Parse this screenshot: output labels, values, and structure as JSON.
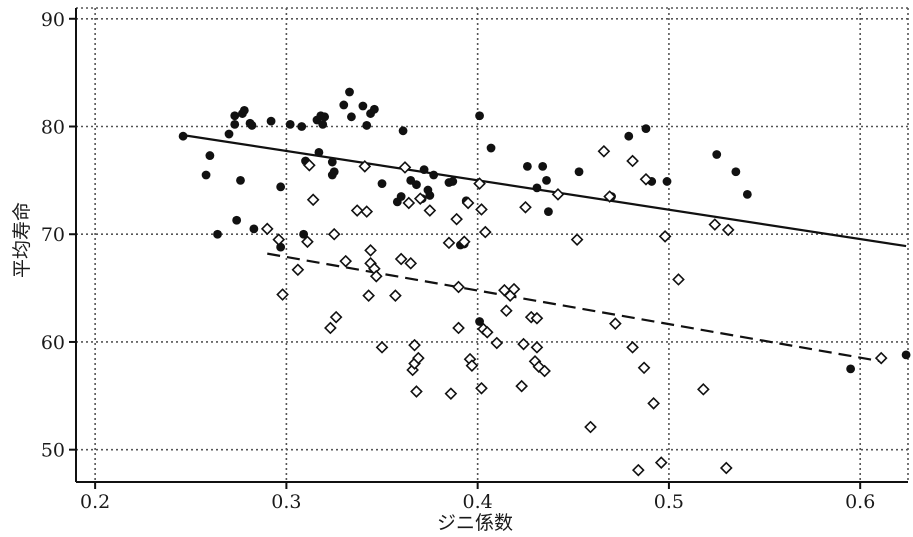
{
  "chart_data": {
    "type": "scatter",
    "xlabel": "ジニ係数",
    "ylabel": "平均寿命",
    "xlim": [
      0.19,
      0.625
    ],
    "ylim": [
      47,
      91
    ],
    "xticks": [
      "0.2",
      "0.3",
      "0.4",
      "0.5",
      "0.6"
    ],
    "xtick_values": [
      0.2,
      0.3,
      0.4,
      0.5,
      0.6
    ],
    "yticks": [
      "50",
      "60",
      "70",
      "80",
      "90"
    ],
    "ytick_values": [
      50,
      60,
      70,
      80,
      90
    ],
    "grid": true,
    "colors": {
      "filled": "#111111",
      "open": "#111111",
      "line": "#111111"
    },
    "series": [
      {
        "marker": "filled-circle",
        "points": [
          [
            0.246,
            79.1
          ],
          [
            0.258,
            75.5
          ],
          [
            0.26,
            77.3
          ],
          [
            0.264,
            70.0
          ],
          [
            0.27,
            79.3
          ],
          [
            0.273,
            80.2
          ],
          [
            0.273,
            81.0
          ],
          [
            0.274,
            71.3
          ],
          [
            0.276,
            75.0
          ],
          [
            0.277,
            81.2
          ],
          [
            0.278,
            81.5
          ],
          [
            0.281,
            80.3
          ],
          [
            0.282,
            80.1
          ],
          [
            0.283,
            70.5
          ],
          [
            0.292,
            80.5
          ],
          [
            0.297,
            74.4
          ],
          [
            0.297,
            68.8
          ],
          [
            0.302,
            80.2
          ],
          [
            0.308,
            80.0
          ],
          [
            0.309,
            70.0
          ],
          [
            0.31,
            76.8
          ],
          [
            0.316,
            80.6
          ],
          [
            0.317,
            77.6
          ],
          [
            0.318,
            81.0
          ],
          [
            0.319,
            80.2
          ],
          [
            0.32,
            80.9
          ],
          [
            0.324,
            76.7
          ],
          [
            0.324,
            75.5
          ],
          [
            0.325,
            75.8
          ],
          [
            0.33,
            82.0
          ],
          [
            0.333,
            83.2
          ],
          [
            0.334,
            80.9
          ],
          [
            0.34,
            81.9
          ],
          [
            0.342,
            80.1
          ],
          [
            0.344,
            81.2
          ],
          [
            0.346,
            81.6
          ],
          [
            0.35,
            74.7
          ],
          [
            0.358,
            73.0
          ],
          [
            0.36,
            73.5
          ],
          [
            0.361,
            79.6
          ],
          [
            0.365,
            75.0
          ],
          [
            0.368,
            74.6
          ],
          [
            0.371,
            73.3
          ],
          [
            0.372,
            76.0
          ],
          [
            0.374,
            74.1
          ],
          [
            0.375,
            73.6
          ],
          [
            0.377,
            75.5
          ],
          [
            0.385,
            74.8
          ],
          [
            0.387,
            74.9
          ],
          [
            0.391,
            69.0
          ],
          [
            0.393,
            69.1
          ],
          [
            0.394,
            73.1
          ],
          [
            0.401,
            81.0
          ],
          [
            0.401,
            61.9
          ],
          [
            0.407,
            78.0
          ],
          [
            0.426,
            76.3
          ],
          [
            0.431,
            74.3
          ],
          [
            0.434,
            76.3
          ],
          [
            0.436,
            75.0
          ],
          [
            0.437,
            72.1
          ],
          [
            0.453,
            75.8
          ],
          [
            0.47,
            73.5
          ],
          [
            0.479,
            79.1
          ],
          [
            0.488,
            79.8
          ],
          [
            0.491,
            74.9
          ],
          [
            0.499,
            74.9
          ],
          [
            0.525,
            77.4
          ],
          [
            0.535,
            75.8
          ],
          [
            0.541,
            73.7
          ],
          [
            0.595,
            57.5
          ],
          [
            0.624,
            58.8
          ]
        ]
      },
      {
        "marker": "open-diamond",
        "points": [
          [
            0.29,
            70.5
          ],
          [
            0.296,
            69.5
          ],
          [
            0.298,
            64.4
          ],
          [
            0.306,
            66.7
          ],
          [
            0.311,
            69.3
          ],
          [
            0.312,
            76.4
          ],
          [
            0.314,
            73.2
          ],
          [
            0.323,
            61.3
          ],
          [
            0.325,
            70.0
          ],
          [
            0.326,
            62.3
          ],
          [
            0.331,
            67.5
          ],
          [
            0.337,
            72.2
          ],
          [
            0.341,
            76.3
          ],
          [
            0.342,
            72.1
          ],
          [
            0.343,
            64.3
          ],
          [
            0.344,
            68.5
          ],
          [
            0.344,
            67.3
          ],
          [
            0.346,
            66.8
          ],
          [
            0.347,
            66.1
          ],
          [
            0.35,
            59.5
          ],
          [
            0.357,
            64.3
          ],
          [
            0.36,
            67.7
          ],
          [
            0.362,
            76.2
          ],
          [
            0.364,
            72.9
          ],
          [
            0.365,
            67.3
          ],
          [
            0.366,
            57.4
          ],
          [
            0.367,
            59.7
          ],
          [
            0.367,
            58.0
          ],
          [
            0.368,
            55.4
          ],
          [
            0.369,
            58.5
          ],
          [
            0.37,
            73.3
          ],
          [
            0.375,
            72.2
          ],
          [
            0.385,
            69.2
          ],
          [
            0.386,
            55.2
          ],
          [
            0.389,
            71.4
          ],
          [
            0.39,
            65.1
          ],
          [
            0.39,
            61.3
          ],
          [
            0.393,
            69.3
          ],
          [
            0.395,
            72.9
          ],
          [
            0.396,
            58.4
          ],
          [
            0.397,
            57.8
          ],
          [
            0.401,
            74.7
          ],
          [
            0.402,
            72.3
          ],
          [
            0.402,
            55.7
          ],
          [
            0.403,
            61.2
          ],
          [
            0.404,
            70.2
          ],
          [
            0.405,
            60.9
          ],
          [
            0.41,
            59.9
          ],
          [
            0.414,
            64.8
          ],
          [
            0.415,
            62.9
          ],
          [
            0.417,
            64.3
          ],
          [
            0.419,
            64.9
          ],
          [
            0.423,
            55.9
          ],
          [
            0.424,
            59.8
          ],
          [
            0.425,
            72.5
          ],
          [
            0.428,
            62.3
          ],
          [
            0.43,
            58.2
          ],
          [
            0.431,
            59.5
          ],
          [
            0.431,
            62.2
          ],
          [
            0.432,
            57.7
          ],
          [
            0.435,
            57.3
          ],
          [
            0.442,
            73.7
          ],
          [
            0.452,
            69.5
          ],
          [
            0.459,
            52.1
          ],
          [
            0.466,
            77.7
          ],
          [
            0.469,
            73.5
          ],
          [
            0.472,
            61.7
          ],
          [
            0.481,
            76.8
          ],
          [
            0.481,
            59.5
          ],
          [
            0.484,
            48.1
          ],
          [
            0.487,
            57.6
          ],
          [
            0.488,
            75.1
          ],
          [
            0.492,
            54.3
          ],
          [
            0.496,
            48.8
          ],
          [
            0.498,
            69.8
          ],
          [
            0.505,
            65.8
          ],
          [
            0.518,
            55.6
          ],
          [
            0.524,
            70.9
          ],
          [
            0.53,
            48.3
          ],
          [
            0.531,
            70.4
          ],
          [
            0.611,
            58.5
          ]
        ]
      }
    ],
    "lines": [
      {
        "style": "solid",
        "x": [
          0.246,
          0.624
        ],
        "y": [
          79.2,
          68.9
        ]
      },
      {
        "style": "dashed",
        "x": [
          0.29,
          0.611
        ],
        "y": [
          68.2,
          58.2
        ]
      }
    ]
  }
}
